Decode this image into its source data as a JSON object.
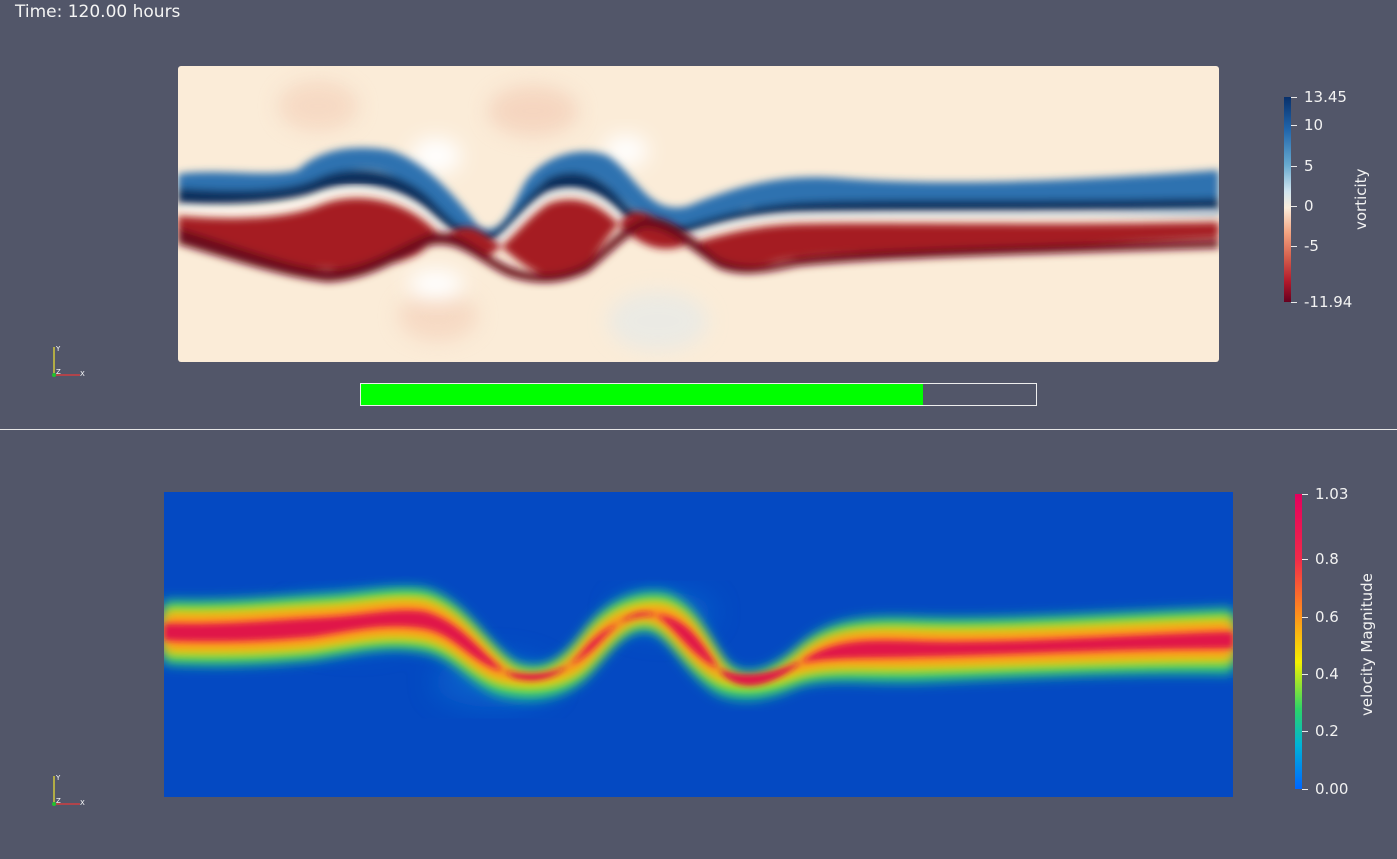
{
  "time_label": "Time: 120.00 hours",
  "progress": {
    "fraction": 0.833,
    "color": "#00ff00"
  },
  "top_view": {
    "colorbar": {
      "title": "vorticity",
      "ticks": [
        "13.45",
        "10",
        "5",
        "0",
        "-5",
        "-11.94"
      ],
      "max": 13.45,
      "min": -11.94
    },
    "axes_labels": {
      "y": "Y",
      "z": "Z",
      "x": "X"
    }
  },
  "bottom_view": {
    "colorbar": {
      "title": "velocity Magnitude",
      "ticks": [
        "1.03",
        "0.8",
        "0.6",
        "0.4",
        "0.2",
        "0.00"
      ],
      "max": 1.03,
      "min": 0.0
    },
    "axes_labels": {
      "y": "Y",
      "z": "Z",
      "x": "X"
    }
  },
  "colors": {
    "background": "#525669",
    "vorticity_positive": "#08306b",
    "vorticity_negative": "#67001f",
    "velocity_low": "#0047c4",
    "velocity_high": "#e4005d"
  }
}
